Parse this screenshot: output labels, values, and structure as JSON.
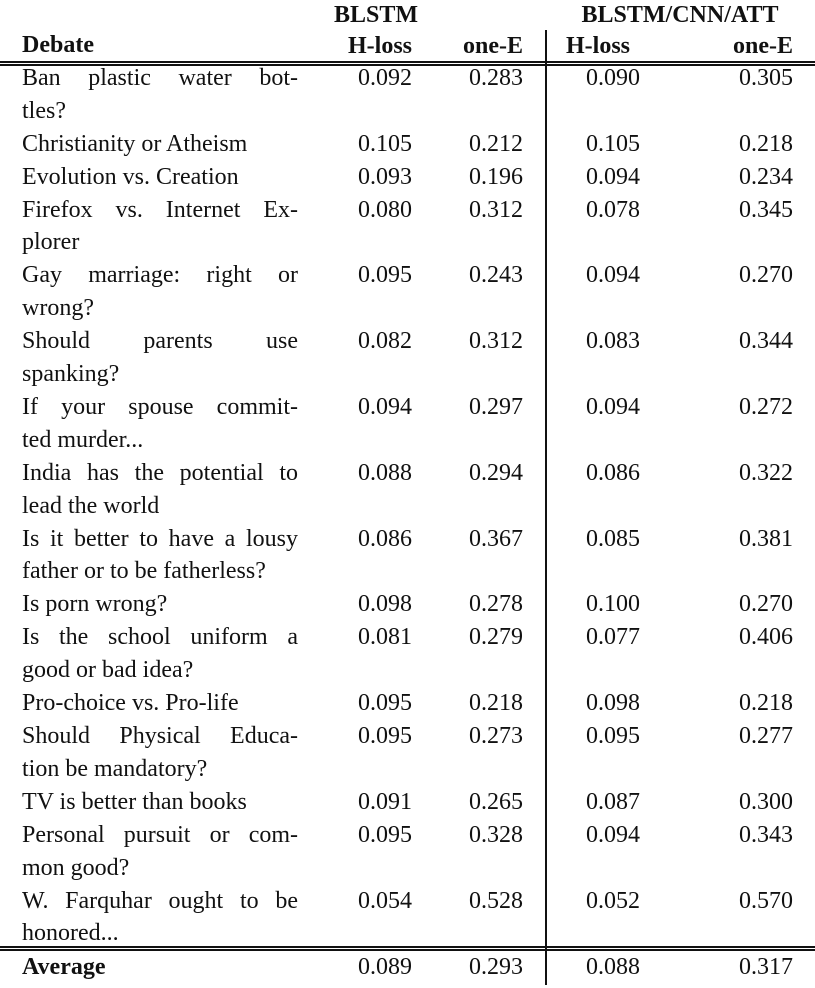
{
  "header": {
    "groups": [
      "BLSTM",
      "BLSTM/CNN/ATT"
    ],
    "columns": [
      "Debate",
      "H-loss",
      "one-E",
      "H-loss",
      "one-E"
    ]
  },
  "rows": [
    {
      "debate": [
        "Ban plastic water bot-",
        "tles?"
      ],
      "values": [
        "0.092",
        "0.283",
        "0.090",
        "0.305"
      ]
    },
    {
      "debate": [
        "Christianity or Atheism"
      ],
      "values": [
        "0.105",
        "0.212",
        "0.105",
        "0.218"
      ]
    },
    {
      "debate": [
        "Evolution vs. Creation"
      ],
      "values": [
        "0.093",
        "0.196",
        "0.094",
        "0.234"
      ]
    },
    {
      "debate": [
        "Firefox vs. Internet Ex-",
        "plorer"
      ],
      "values": [
        "0.080",
        "0.312",
        "0.078",
        "0.345"
      ]
    },
    {
      "debate": [
        "Gay marriage: right or",
        "wrong?"
      ],
      "values": [
        "0.095",
        "0.243",
        "0.094",
        "0.270"
      ]
    },
    {
      "debate": [
        "Should parents use",
        "spanking?"
      ],
      "values": [
        "0.082",
        "0.312",
        "0.083",
        "0.344"
      ]
    },
    {
      "debate": [
        "If your spouse commit-",
        "ted murder..."
      ],
      "values": [
        "0.094",
        "0.297",
        "0.094",
        "0.272"
      ]
    },
    {
      "debate": [
        "India has the potential to",
        "lead the world"
      ],
      "values": [
        "0.088",
        "0.294",
        "0.086",
        "0.322"
      ]
    },
    {
      "debate": [
        "Is it better to have a lousy",
        "father or to be fatherless?"
      ],
      "values": [
        "0.086",
        "0.367",
        "0.085",
        "0.381"
      ]
    },
    {
      "debate": [
        "Is porn wrong?"
      ],
      "values": [
        "0.098",
        "0.278",
        "0.100",
        "0.270"
      ]
    },
    {
      "debate": [
        "Is the school uniform a",
        "good or bad idea?"
      ],
      "values": [
        "0.081",
        "0.279",
        "0.077",
        "0.406"
      ]
    },
    {
      "debate": [
        "Pro-choice vs. Pro-life"
      ],
      "values": [
        "0.095",
        "0.218",
        "0.098",
        "0.218"
      ]
    },
    {
      "debate": [
        "Should Physical Educa-",
        "tion be mandatory?"
      ],
      "values": [
        "0.095",
        "0.273",
        "0.095",
        "0.277"
      ]
    },
    {
      "debate": [
        "TV is better than books"
      ],
      "values": [
        "0.091",
        "0.265",
        "0.087",
        "0.300"
      ]
    },
    {
      "debate": [
        "Personal pursuit or com-",
        "mon good?"
      ],
      "values": [
        "0.095",
        "0.328",
        "0.094",
        "0.343"
      ]
    },
    {
      "debate": [
        "W. Farquhar ought to be",
        "honored..."
      ],
      "values": [
        "0.054",
        "0.528",
        "0.052",
        "0.570"
      ]
    }
  ],
  "average": {
    "label": "Average",
    "values": [
      "0.089",
      "0.293",
      "0.088",
      "0.317"
    ]
  }
}
